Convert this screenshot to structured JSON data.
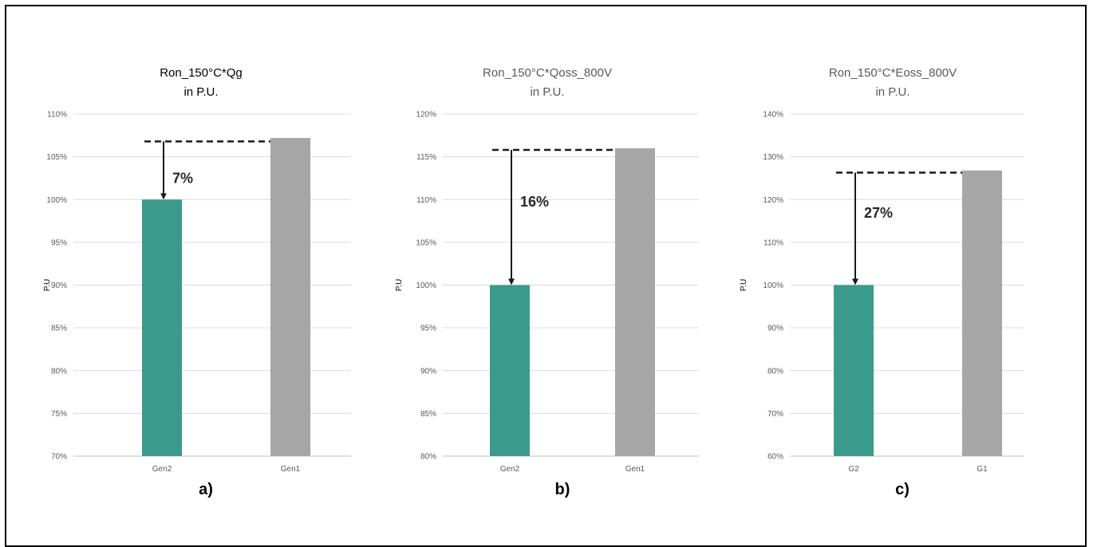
{
  "chart_data": [
    {
      "type": "bar",
      "panel_label": "a)",
      "title": "Ron_150°C*Qg",
      "subtitle": "in P.U.",
      "ylabel": "P.U",
      "categories": [
        "Gen2",
        "Gen1"
      ],
      "values": [
        100,
        107.2
      ],
      "colors": [
        "#3a9a8c",
        "#a6a6a6"
      ],
      "ylim": [
        70,
        110
      ],
      "ytick_step": 5,
      "ytick_labels": [
        "70%",
        "75%",
        "80%",
        "85%",
        "90%",
        "95%",
        "100%",
        "105%",
        "110%"
      ],
      "grid": true,
      "annotation": {
        "text": "7%",
        "dashed_level": 106.8,
        "arrow_to": 100
      }
    },
    {
      "type": "bar",
      "panel_label": "b)",
      "title": "Ron_150°C*Qoss_800V",
      "subtitle": "in P.U.",
      "ylabel": "P.U",
      "categories": [
        "Gen2",
        "Gen1"
      ],
      "values": [
        100,
        116
      ],
      "colors": [
        "#3a9a8c",
        "#a6a6a6"
      ],
      "ylim": [
        80,
        120
      ],
      "ytick_step": 5,
      "ytick_labels": [
        "80%",
        "85%",
        "90%",
        "95%",
        "100%",
        "105%",
        "110%",
        "115%",
        "120%"
      ],
      "grid": true,
      "annotation": {
        "text": "16%",
        "dashed_level": 115.8,
        "arrow_to": 100
      }
    },
    {
      "type": "bar",
      "panel_label": "c)",
      "title": "Ron_150°C*Eoss_800V",
      "subtitle": "in P.U.",
      "ylabel": "P.U",
      "categories": [
        "G2",
        "G1"
      ],
      "values": [
        100,
        126.8
      ],
      "colors": [
        "#3a9a8c",
        "#a6a6a6"
      ],
      "ylim": [
        60,
        140
      ],
      "ytick_step": 10,
      "ytick_labels": [
        "60%",
        "70%",
        "80%",
        "90%",
        "100%",
        "110%",
        "120%",
        "130%",
        "140%"
      ],
      "grid": true,
      "annotation": {
        "text": "27%",
        "dashed_level": 126.3,
        "arrow_to": 100
      }
    }
  ]
}
